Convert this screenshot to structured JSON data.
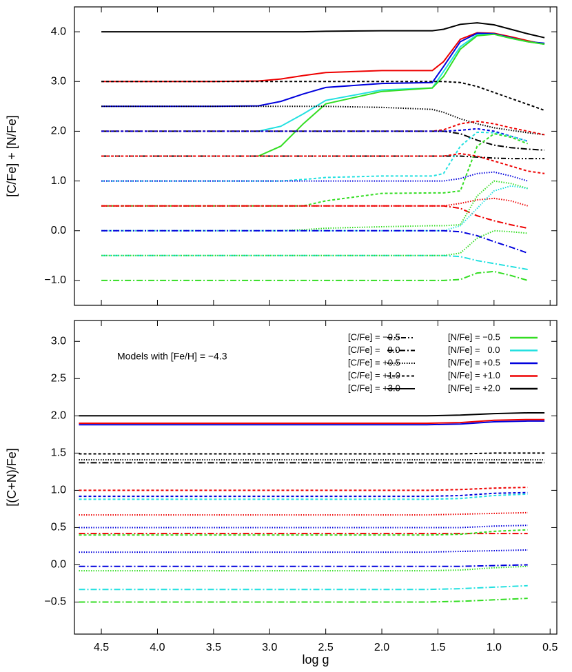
{
  "chart_data": [
    {
      "type": "line",
      "ylabel": "[C/Fe] + [N/Fe]",
      "x": [
        4.5,
        3.5,
        3.1,
        2.9,
        2.7,
        2.5,
        2.0,
        1.55,
        1.45,
        1.3,
        1.15,
        1.0,
        0.85,
        0.7,
        0.55
      ],
      "xlim": [
        4.74,
        0.44
      ],
      "ylim": [
        -1.5,
        4.5
      ],
      "xticks": [
        4.5,
        4,
        3.5,
        3,
        2.5,
        2,
        1.5,
        1,
        0.5
      ],
      "xticklabels": false,
      "yticks": [
        {
          "value": -1,
          "label": "−1.0"
        },
        {
          "value": 0,
          "label": "0.0"
        },
        {
          "value": 1,
          "label": "1.0"
        },
        {
          "value": 2,
          "label": "2.0"
        },
        {
          "value": 3,
          "label": "3.0"
        },
        {
          "value": 4,
          "label": "4.0"
        }
      ],
      "series": [
        {
          "style": "solid",
          "color": "#000000",
          "values": [
            4,
            4,
            4,
            4,
            4,
            4.01,
            4.02,
            4.02,
            4.05,
            4.15,
            4.18,
            4.14,
            4.05,
            3.96,
            3.88
          ]
        },
        {
          "style": "solid",
          "color": "#ee0000",
          "values": [
            3,
            3,
            3.01,
            3.05,
            3.12,
            3.18,
            3.22,
            3.22,
            3.4,
            3.85,
            3.98,
            3.97,
            3.9,
            3.82,
            3.75
          ]
        },
        {
          "style": "solid",
          "color": "#0000dd",
          "values": [
            2.5,
            2.5,
            2.51,
            2.6,
            2.75,
            2.88,
            2.96,
            2.98,
            3.3,
            3.8,
            3.97,
            3.96,
            3.88,
            3.8,
            3.77
          ]
        },
        {
          "style": "solid",
          "color": "#22e0e0",
          "values": [
            null,
            null,
            2.0,
            2.1,
            2.35,
            2.62,
            2.83,
            2.87,
            3.2,
            3.7,
            3.94,
            3.95,
            3.87,
            3.8,
            3.75
          ]
        },
        {
          "style": "solid",
          "color": "#33dd22",
          "values": [
            null,
            null,
            1.5,
            1.7,
            2.15,
            2.55,
            2.8,
            2.87,
            3.1,
            3.65,
            3.92,
            3.95,
            3.87,
            3.8,
            3.75
          ]
        },
        {
          "style": "dotted",
          "color": "#000000",
          "values": [
            3,
            3,
            3,
            3,
            3,
            3,
            3,
            3,
            3,
            2.98,
            2.9,
            2.78,
            2.66,
            2.54,
            2.42
          ]
        },
        {
          "style": "fine-dotted",
          "color": "#000000",
          "values": [
            2.5,
            2.5,
            2.5,
            2.5,
            2.5,
            2.5,
            2.48,
            2.44,
            2.38,
            2.25,
            2.15,
            2.07,
            2.02,
            1.97,
            1.93
          ]
        },
        {
          "style": "dash-dot",
          "color": "#000000",
          "values": [
            2,
            2,
            2,
            2,
            2,
            2,
            2,
            2,
            2,
            1.95,
            1.82,
            1.72,
            1.67,
            1.64,
            1.62
          ]
        },
        {
          "style": "dash-dot-dot",
          "color": "#000000",
          "values": [
            1.5,
            1.5,
            1.5,
            1.5,
            1.5,
            1.5,
            1.5,
            1.5,
            1.5,
            1.5,
            1.48,
            1.46,
            1.45,
            1.45,
            1.45
          ]
        },
        {
          "style": "dotted",
          "color": "#ee0000",
          "values": [
            2,
            2,
            2,
            2,
            2,
            2,
            2,
            2,
            2.03,
            2.15,
            2.2,
            2.15,
            2.07,
            2.0,
            1.93
          ]
        },
        {
          "style": "dotted",
          "color": "#0000dd",
          "values": [
            2,
            2,
            2,
            2,
            2,
            2,
            2,
            2,
            2,
            2.02,
            2.05,
            2.0,
            1.9,
            1.8,
            null
          ]
        },
        {
          "style": "dotted",
          "color": "#22e0e0",
          "values": [
            1,
            1,
            1,
            1,
            1.03,
            1.07,
            1.1,
            1.1,
            1.15,
            1.7,
            1.98,
            1.97,
            1.9,
            1.8,
            null
          ]
        },
        {
          "style": "dotted",
          "color": "#33dd22",
          "values": [
            0.5,
            0.5,
            0.5,
            0.5,
            0.5,
            0.6,
            0.75,
            0.76,
            0.76,
            0.8,
            1.7,
            1.95,
            1.88,
            1.75,
            null
          ]
        },
        {
          "style": "fine-dotted",
          "color": "#0000dd",
          "values": [
            1,
            1,
            1,
            1,
            1,
            1,
            1,
            1,
            1,
            1.05,
            1.15,
            1.18,
            1.1,
            1.0,
            null
          ]
        },
        {
          "style": "dotted",
          "color": "#ee0000",
          "values": [
            1.5,
            1.5,
            1.5,
            1.5,
            1.5,
            1.5,
            1.5,
            1.5,
            1.5,
            1.55,
            1.5,
            1.4,
            1.3,
            1.2,
            1.15
          ]
        },
        {
          "style": "fine-dotted",
          "color": "#ee0000",
          "values": [
            0.5,
            0.5,
            0.5,
            0.5,
            0.5,
            0.5,
            0.5,
            0.5,
            0.5,
            0.55,
            0.62,
            0.65,
            0.6,
            0.5,
            null
          ]
        },
        {
          "style": "dash-dot",
          "color": "#ee0000",
          "values": [
            0.5,
            0.5,
            0.5,
            0.5,
            0.5,
            0.5,
            0.5,
            0.5,
            0.5,
            0.45,
            0.3,
            0.2,
            0.12,
            0.05,
            null
          ]
        },
        {
          "style": "fine-dotted",
          "color": "#33dd22",
          "values": [
            0,
            0,
            0,
            0,
            0.02,
            0.05,
            0.08,
            0.1,
            0.1,
            0.12,
            0.7,
            1.0,
            0.95,
            0.85,
            null
          ]
        },
        {
          "style": "fine-dotted",
          "color": "#22e0e0",
          "values": [
            0,
            0,
            0,
            0,
            0,
            0,
            0,
            0,
            0,
            0.1,
            0.45,
            0.8,
            0.9,
            0.85,
            null
          ]
        },
        {
          "style": "dash-dot",
          "color": "#0000dd",
          "values": [
            0,
            0,
            0,
            0,
            0,
            0,
            0,
            0,
            0,
            -0.02,
            -0.1,
            -0.22,
            -0.33,
            -0.45,
            null
          ]
        },
        {
          "style": "dash-dot",
          "color": "#22e0e0",
          "values": [
            -0.5,
            -0.5,
            -0.5,
            -0.5,
            -0.5,
            -0.5,
            -0.5,
            -0.5,
            -0.5,
            -0.52,
            -0.6,
            -0.66,
            -0.72,
            -0.78,
            null
          ]
        },
        {
          "style": "fine-dotted",
          "color": "#33dd22",
          "values": [
            -0.5,
            -0.5,
            -0.5,
            -0.5,
            -0.5,
            -0.5,
            -0.5,
            -0.5,
            -0.5,
            -0.45,
            -0.15,
            0.0,
            -0.02,
            -0.05,
            null
          ]
        },
        {
          "style": "dash-dot",
          "color": "#33dd22",
          "values": [
            -1,
            -1,
            -1,
            -1,
            -1,
            -1,
            -1,
            -1,
            -1,
            -0.98,
            -0.85,
            -0.82,
            -0.9,
            -1.0,
            null
          ]
        }
      ]
    },
    {
      "type": "line",
      "xlabel": "log g",
      "ylabel": "[(C+N)/Fe]",
      "annotation": "Models with [Fe/H] = −4.3",
      "x": [
        4.7,
        3.0,
        1.6,
        1.3,
        1.0,
        0.7,
        0.55
      ],
      "xlim": [
        4.74,
        0.44
      ],
      "ylim": [
        -0.93,
        3.28
      ],
      "xticks": [
        4.5,
        {
          "value": 4,
          "label": "4.0"
        },
        3.5,
        {
          "value": 3,
          "label": "3.0"
        },
        2.5,
        {
          "value": 2,
          "label": "2.0"
        },
        1.5,
        {
          "value": 1,
          "label": "1.0"
        },
        0.5
      ],
      "yticks": [
        {
          "value": -0.5,
          "label": "−0.5"
        },
        {
          "value": 0,
          "label": "0.0"
        },
        0.5,
        {
          "value": 1,
          "label": "1.0"
        },
        1.5,
        {
          "value": 2,
          "label": "2.0"
        },
        2.5,
        {
          "value": 3,
          "label": "3.0"
        }
      ],
      "legend": {
        "styles": [
          {
            "label": "[C/Fe] = −0.5",
            "style": "dash-dot-dot"
          },
          {
            "label": "[C/Fe] =   0.0",
            "style": "dash-dot"
          },
          {
            "label": "[C/Fe] = +0.5",
            "style": "fine-dotted"
          },
          {
            "label": "[C/Fe] = +1.0",
            "style": "dotted"
          },
          {
            "label": "[C/Fe] = +3.0",
            "style": "solid"
          }
        ],
        "colors": [
          {
            "label": "[N/Fe] = −0.5",
            "color": "#33dd22"
          },
          {
            "label": "[N/Fe] =   0.0",
            "color": "#22e0e0"
          },
          {
            "label": "[N/Fe] = +0.5",
            "color": "#0000dd"
          },
          {
            "label": "[N/Fe] = +1.0",
            "color": "#ee0000"
          },
          {
            "label": "[N/Fe] = +2.0",
            "color": "#000000"
          }
        ]
      },
      "series": [
        {
          "style": "solid",
          "color": "#000000",
          "values": [
            2,
            2,
            2,
            2.01,
            2.03,
            2.04,
            2.04
          ]
        },
        {
          "style": "solid",
          "color": "#ee0000",
          "values": [
            1.9,
            1.9,
            1.9,
            1.91,
            1.94,
            1.95,
            1.95
          ]
        },
        {
          "style": "solid",
          "color": "#0000dd",
          "values": [
            1.88,
            1.88,
            1.88,
            1.89,
            1.92,
            1.93,
            1.93
          ]
        },
        {
          "style": "dotted",
          "color": "#000000",
          "values": [
            1.49,
            1.49,
            1.49,
            1.49,
            1.5,
            1.5,
            1.5
          ]
        },
        {
          "style": "fine-dotted",
          "color": "#000000",
          "values": [
            1.41,
            1.41,
            1.41,
            1.41,
            1.41,
            1.41,
            1.41
          ]
        },
        {
          "style": "dash-dot",
          "color": "#000000",
          "values": [
            1.37,
            1.37,
            1.37,
            1.37,
            1.37,
            1.37,
            1.37
          ]
        },
        {
          "style": "dotted",
          "color": "#ee0000",
          "values": [
            1.0,
            1.0,
            1.0,
            1.01,
            1.03,
            1.04,
            null
          ]
        },
        {
          "style": "dotted",
          "color": "#0000dd",
          "values": [
            0.92,
            0.92,
            0.92,
            0.93,
            0.96,
            0.97,
            null
          ]
        },
        {
          "style": "dotted",
          "color": "#22e0e0",
          "values": [
            0.88,
            0.88,
            0.88,
            0.89,
            0.93,
            0.95,
            null
          ]
        },
        {
          "style": "fine-dotted",
          "color": "#ee0000",
          "values": [
            0.67,
            0.67,
            0.67,
            0.68,
            0.69,
            0.7,
            null
          ]
        },
        {
          "style": "fine-dotted",
          "color": "#0000dd",
          "values": [
            0.5,
            0.5,
            0.5,
            0.5,
            0.52,
            0.53,
            null
          ]
        },
        {
          "style": "dash-dot",
          "color": "#ee0000",
          "values": [
            0.42,
            0.42,
            0.42,
            0.42,
            0.42,
            0.42,
            null
          ]
        },
        {
          "style": "dotted",
          "color": "#33dd22",
          "values": [
            0.4,
            0.4,
            0.4,
            0.41,
            0.45,
            0.47,
            null
          ]
        },
        {
          "style": "fine-dotted",
          "color": "#0000dd",
          "values": [
            0.17,
            0.17,
            0.17,
            0.18,
            0.19,
            0.2,
            null
          ]
        },
        {
          "style": "dash-dot",
          "color": "#0000dd",
          "values": [
            -0.02,
            -0.02,
            -0.02,
            -0.02,
            -0.01,
            0,
            null
          ]
        },
        {
          "style": "fine-dotted",
          "color": "#33dd22",
          "values": [
            -0.08,
            -0.08,
            -0.08,
            -0.07,
            -0.04,
            -0.02,
            null
          ]
        },
        {
          "style": "dash-dot",
          "color": "#22e0e0",
          "values": [
            -0.33,
            -0.33,
            -0.33,
            -0.32,
            -0.3,
            -0.28,
            null
          ]
        },
        {
          "style": "dash-dot",
          "color": "#33dd22",
          "values": [
            -0.5,
            -0.5,
            -0.5,
            -0.49,
            -0.47,
            -0.45,
            null
          ]
        }
      ]
    }
  ]
}
